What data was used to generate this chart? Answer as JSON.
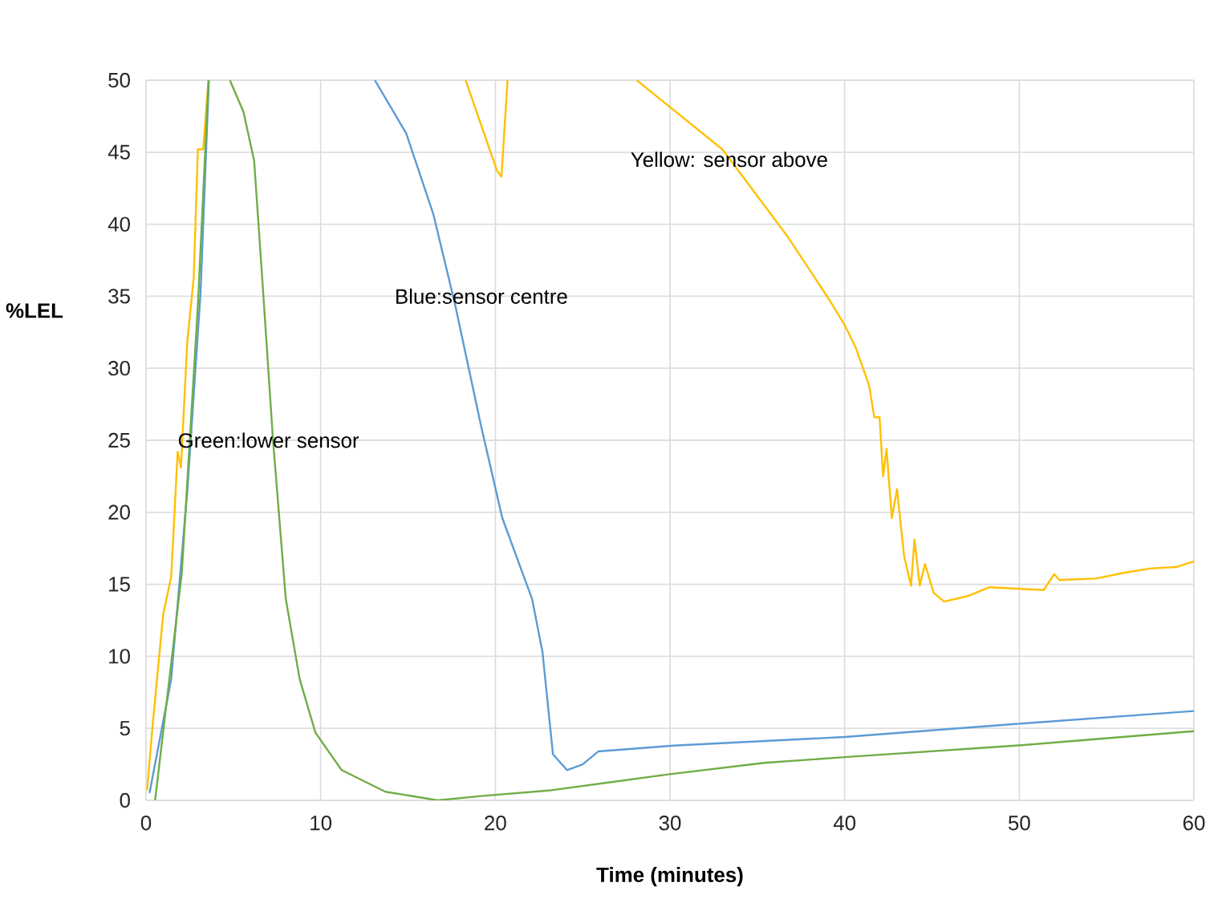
{
  "chart_data": {
    "type": "line",
    "xlabel": "Time (minutes)",
    "ylabel": "%LEL",
    "xlim": [
      0,
      60
    ],
    "ylim": [
      0,
      50
    ],
    "xticks": [
      0,
      10,
      20,
      30,
      40,
      50,
      60
    ],
    "yticks": [
      0,
      5,
      10,
      15,
      20,
      25,
      30,
      35,
      40,
      45,
      50
    ],
    "grid": true,
    "marker": "none",
    "line_style": "solid",
    "series": [
      {
        "color": "#ffc000",
        "x": [
          0.06,
          0.37,
          0.98,
          1.44,
          1.81,
          2.0,
          2.36,
          2.73,
          2.97,
          3.27,
          3.58,
          10,
          18.3,
          20.1,
          20.35,
          20.7,
          25,
          28.1,
          28.4,
          33.0,
          36.7,
          39.1,
          40.0,
          40.65,
          41.4,
          41.7,
          42.0,
          42.2,
          42.4,
          42.7,
          43.0,
          43.4,
          43.8,
          44.0,
          44.3,
          44.6,
          45.1,
          45.7,
          47.1,
          48.3,
          49.8,
          51.4,
          52.0,
          52.3,
          54.4,
          56.0,
          57.5,
          59.0,
          60
        ],
        "values": [
          0.7,
          5.1,
          12.9,
          15.5,
          24.2,
          23.1,
          31.8,
          36.3,
          45.2,
          45.2,
          50,
          null,
          50,
          43.7,
          43.3,
          50,
          null,
          50,
          49.7,
          45.2,
          39.2,
          34.8,
          33.0,
          31.4,
          28.8,
          26.6,
          26.6,
          22.5,
          24.4,
          19.6,
          21.6,
          17.0,
          14.9,
          18.1,
          14.9,
          16.4,
          14.4,
          13.8,
          14.2,
          14.8,
          14.7,
          14.6,
          15.7,
          15.3,
          15.4,
          15.8,
          16.1,
          16.2,
          16.6
        ]
      },
      {
        "color": "#5b9bd5",
        "x": [
          0.2,
          1.44,
          2.36,
          3.12,
          3.6,
          10,
          13.1,
          14.9,
          16.45,
          17.7,
          19.2,
          20.4,
          22.1,
          22.7,
          23.3,
          24.1,
          25.0,
          25.9,
          30.2,
          40,
          49.8,
          60
        ],
        "values": [
          0.5,
          8.4,
          21.4,
          35.2,
          50,
          null,
          50,
          46.3,
          40.7,
          34.4,
          25.9,
          19.6,
          14.0,
          10.3,
          3.2,
          2.1,
          2.5,
          3.4,
          3.8,
          4.4,
          5.3,
          6.2
        ]
      },
      {
        "color": "#70ad47",
        "x": [
          0.52,
          2.05,
          2.97,
          3.58,
          4.2,
          4.8,
          5.58,
          6.19,
          6.65,
          7.26,
          8.0,
          8.8,
          9.7,
          11.2,
          13.7,
          16.7,
          19.2,
          23.2,
          29.9,
          35.4,
          40,
          49.8,
          60
        ],
        "values": [
          0,
          15.8,
          34.4,
          50,
          null,
          50,
          47.8,
          44.4,
          36.3,
          25.2,
          14,
          8.4,
          4.7,
          2.1,
          0.6,
          0,
          0.3,
          0.7,
          1.8,
          2.6,
          3.0,
          3.8,
          4.8
        ]
      }
    ],
    "annotations": [
      "Green:lower sensor",
      "Blue:sensor centre",
      "Yellow: sensor above"
    ]
  }
}
